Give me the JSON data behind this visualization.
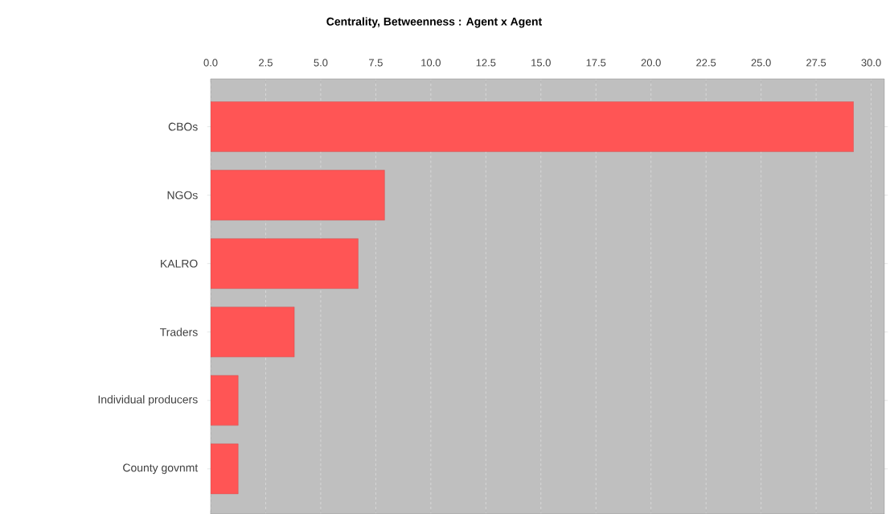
{
  "chart_data": {
    "type": "bar",
    "orientation": "horizontal",
    "title": "Centrality, Betweenness : Agent x Agent",
    "categories": [
      "CBOs",
      "NGOs",
      "KALRO",
      "Traders",
      "Individual producers",
      "County govnmt"
    ],
    "values": [
      29.2,
      7.9,
      6.7,
      3.8,
      1.25,
      1.25
    ],
    "color": "#ff5555",
    "xlim": [
      0,
      30.6
    ],
    "xticks": [
      {
        "value": 0,
        "label": "0.0"
      },
      {
        "value": 2.5,
        "label": "2.5"
      },
      {
        "value": 5,
        "label": "5.0"
      },
      {
        "value": 7.5,
        "label": "7.5"
      },
      {
        "value": 10,
        "label": "10.0"
      },
      {
        "value": 12.5,
        "label": "12.5"
      },
      {
        "value": 15,
        "label": "15.0"
      },
      {
        "value": 17.5,
        "label": "17.5"
      },
      {
        "value": 20,
        "label": "20.0"
      },
      {
        "value": 22.5,
        "label": "22.5"
      },
      {
        "value": 25,
        "label": "25.0"
      },
      {
        "value": 27.5,
        "label": "27.5"
      },
      {
        "value": 30,
        "label": "30.0"
      }
    ],
    "grid": "x"
  }
}
